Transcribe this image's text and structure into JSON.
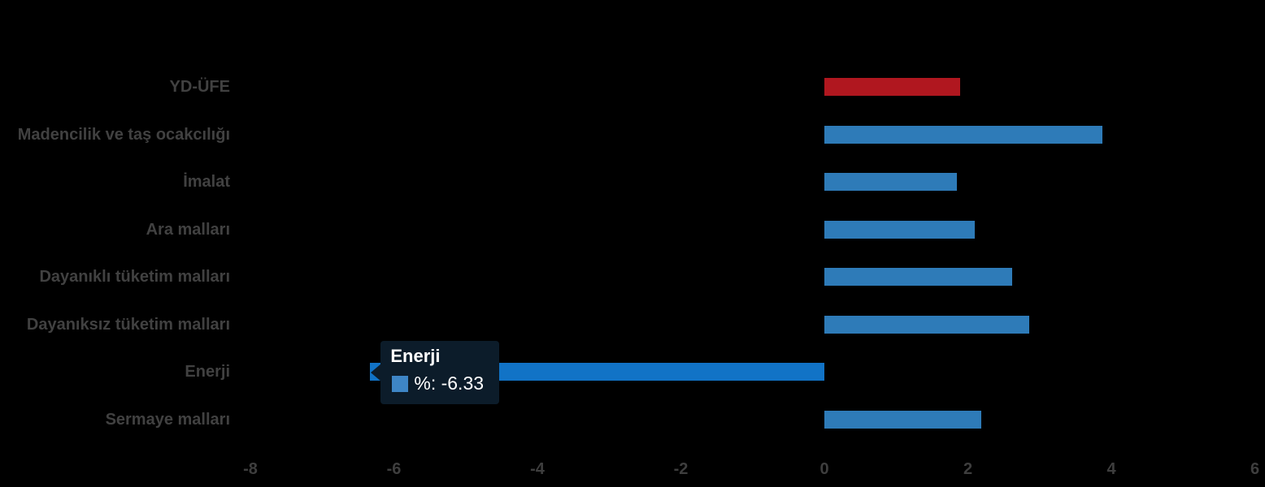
{
  "chart_data": {
    "type": "bar",
    "orientation": "horizontal",
    "title": "",
    "xlabel": "",
    "ylabel": "",
    "categories": [
      "YD-ÜFE",
      "Madencilik ve taş ocakcılığı",
      "İmalat",
      "Ara malları",
      "Dayanıklı tüketim malları",
      "Dayanıksız tüketim malları",
      "Enerji",
      "Sermaye malları"
    ],
    "series": [
      {
        "name": "%",
        "values": [
          1.89,
          3.88,
          1.85,
          2.1,
          2.62,
          2.86,
          -6.33,
          2.19
        ]
      }
    ],
    "x_ticks": [
      "-8",
      "-6",
      "-4",
      "-2",
      "0",
      "2",
      "4",
      "6"
    ],
    "x_tick_values": [
      -8,
      -6,
      -4,
      -2,
      0,
      2,
      4,
      6
    ],
    "xlim": [
      -8.3,
      6.15
    ],
    "grid": "off",
    "legend_position": "none",
    "hovered_category": "Enerji",
    "hovered_index": 6,
    "colors": {
      "bar_default": "#2e7bb8",
      "bar_first": "#b0171f",
      "bar_hover": "#1173c6",
      "tooltip_bg": "#0c1c2a",
      "tooltip_swatch": "#3e86c6",
      "label_text": "#414141",
      "tick_text": "#3e3e3e",
      "tooltip_text": "#ffffff",
      "background": "#000000"
    },
    "tooltip": {
      "title": "Enerji",
      "series_name": "%",
      "value": -6.33,
      "value_label": "%: -6.33"
    }
  }
}
